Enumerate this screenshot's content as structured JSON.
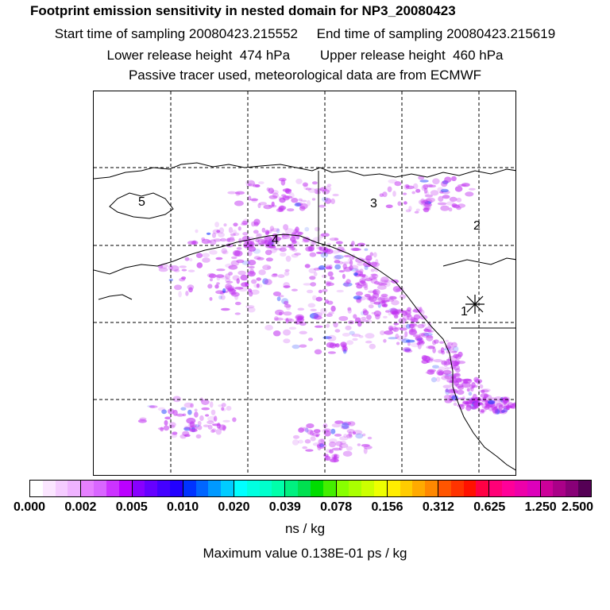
{
  "header": {
    "title": "Footprint emission sensitivity in nested domain for NP3_20080423",
    "sampling_line": "Start time of sampling 20080423.215552     End time of sampling 20080423.215619",
    "release_line": "Lower release height  474 hPa        Upper release height  460 hPa",
    "tracer_line": "Passive tracer used, meteorological data are from ECMWF"
  },
  "map": {
    "station_labels": [
      "1",
      "2",
      "3",
      "4",
      "5"
    ],
    "colors": {
      "coast": "#000000",
      "grid": "#000000",
      "plume": "#c030f0",
      "plume_core": "#2040ff"
    }
  },
  "legend": {
    "tick_labels": [
      "0.000",
      "0.002",
      "0.005",
      "0.010",
      "0.020",
      "0.039",
      "0.078",
      "0.156",
      "0.312",
      "0.625",
      "1.250",
      "2.500"
    ],
    "swatch_colors": [
      "#ffffff",
      "#fbe6ff",
      "#f5ccff",
      "#efb3ff",
      "#e680ff",
      "#d966ff",
      "#cc33ff",
      "#bb00ff",
      "#8800ff",
      "#6600ff",
      "#4400ff",
      "#2200ff",
      "#0033ff",
      "#0066ff",
      "#0099ff",
      "#00ccff",
      "#00ffff",
      "#00ffe0",
      "#00ffcc",
      "#00ffaa",
      "#00f080",
      "#00e050",
      "#00dd00",
      "#44ee00",
      "#88ff00",
      "#aaff00",
      "#ccff00",
      "#eeff00",
      "#ffee00",
      "#ffcc00",
      "#ffaa00",
      "#ff8800",
      "#ff5500",
      "#ff3300",
      "#ff1100",
      "#ff0044",
      "#ff0077",
      "#ff0099",
      "#ee00aa",
      "#dd00bb",
      "#cc0099",
      "#aa0088",
      "#880077",
      "#550055"
    ],
    "unit": "ns / kg",
    "max_value": "Maximum value  0.138E-01 ps / kg"
  }
}
